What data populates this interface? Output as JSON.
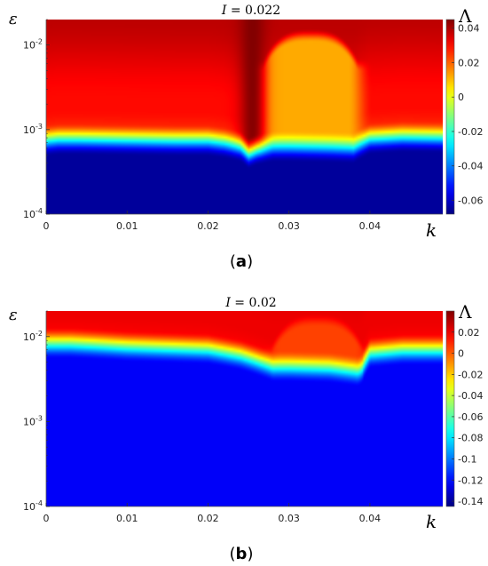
{
  "chart_data": [
    {
      "type": "heatmap",
      "panel_label": "a",
      "title": "I = 0.022",
      "title_var": "I",
      "title_value": "0.022",
      "xlabel": "k",
      "ylabel": "ε",
      "colorbar_label": "Λ",
      "x_ticks": [
        "0",
        "0.01",
        "0.02",
        "0.03",
        "0.04"
      ],
      "x_range": [
        0,
        0.049
      ],
      "y_scale": "log",
      "y_ticks": [
        "10^-4",
        "10^-3",
        "10^-2"
      ],
      "y_range": [
        0.0001,
        0.02
      ],
      "color_range": [
        -0.068,
        0.045
      ],
      "colorbar_ticks": [
        "0.04",
        "0.02",
        "0",
        "-0.02",
        "-0.04",
        "-0.06"
      ],
      "colorbar_tick_values": [
        0.04,
        0.02,
        0,
        -0.02,
        -0.04,
        -0.06
      ],
      "colormap": "jet",
      "regions": {
        "low_value": -0.065,
        "high_value": 0.03,
        "peak_value": 0.045,
        "plateau_value": 0.012
      },
      "boundary": {
        "k": [
          0,
          0.0015,
          0.004,
          0.01,
          0.016,
          0.02,
          0.022,
          0.024,
          0.025,
          0.026,
          0.028,
          0.03,
          0.035,
          0.038,
          0.04,
          0.044,
          0.049
        ],
        "eps": [
          0.00055,
          0.00057,
          0.00057,
          0.00056,
          0.00055,
          0.00055,
          0.00052,
          0.00047,
          0.00039,
          0.00043,
          0.00047,
          0.00047,
          0.00046,
          0.00045,
          0.00058,
          0.00061,
          0.0006
        ]
      },
      "plateau": {
        "k_min": 0.0268,
        "k_max": 0.0385,
        "eps_min": 0.00045,
        "eps_max": 0.013
      },
      "ridge": {
        "k": 0.0255,
        "eps_min": 0.0004
      }
    },
    {
      "type": "heatmap",
      "panel_label": "b",
      "title": "I = 0.02",
      "title_var": "I",
      "title_value": "0.02",
      "xlabel": "k",
      "ylabel": "ε",
      "colorbar_label": "Λ",
      "x_ticks": [
        "0",
        "0.01",
        "0.02",
        "0.03",
        "0.04"
      ],
      "x_range": [
        0,
        0.049
      ],
      "y_scale": "log",
      "y_ticks": [
        "10^-4",
        "10^-3",
        "10^-2"
      ],
      "y_range": [
        0.0001,
        0.02
      ],
      "color_range": [
        -0.145,
        0.04
      ],
      "colorbar_ticks": [
        "0.02",
        "0",
        "-0.02",
        "-0.04",
        "-0.06",
        "-0.08",
        "-0.1",
        "-0.12",
        "-0.14"
      ],
      "colorbar_tick_values": [
        0.02,
        0,
        -0.02,
        -0.04,
        -0.06,
        -0.08,
        -0.1,
        -0.12,
        -0.14
      ],
      "colormap": "jet",
      "regions": {
        "low_value": -0.123,
        "high_value": 0.02,
        "peak_value": 0.04,
        "plateau_value": 0.005
      },
      "boundary": {
        "k": [
          0,
          0.003,
          0.006,
          0.01,
          0.015,
          0.02,
          0.024,
          0.027,
          0.028,
          0.03,
          0.035,
          0.0385,
          0.039,
          0.04,
          0.044,
          0.049
        ],
        "eps": [
          0.0062,
          0.0062,
          0.006,
          0.0057,
          0.0055,
          0.0053,
          0.0045,
          0.0036,
          0.0033,
          0.0033,
          0.0032,
          0.0029,
          0.0031,
          0.0048,
          0.0052,
          0.0052
        ]
      },
      "plateau": {
        "k_min": 0.0278,
        "k_max": 0.0392,
        "eps_min": 0.0033,
        "eps_max": 0.0155
      },
      "ridge": null
    }
  ]
}
